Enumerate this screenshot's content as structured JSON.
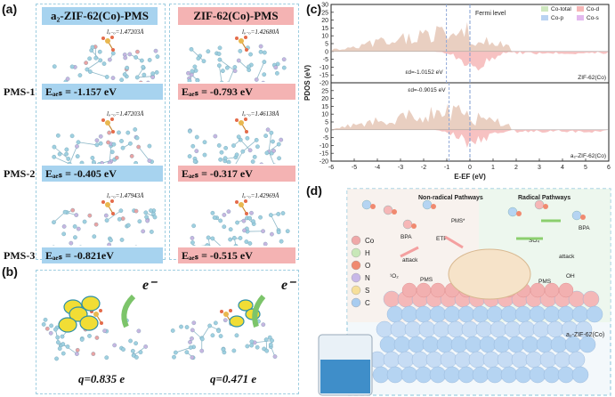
{
  "panels": {
    "a": "(a)",
    "b": "(b)",
    "c": "(c)",
    "d": "(d)"
  },
  "panel_a": {
    "left_header": "a₂-ZIF-62(Co)-PMS",
    "right_header": "ZIF-62(Co)-PMS",
    "rows": [
      {
        "label": "PMS-1",
        "left_bond": "lₒ₋ₒ=1.47203Å",
        "right_bond": "lₒ₋ₒ=1.42680Å",
        "left_E": "Eₐₑₛ = -1.157 eV",
        "right_E": "Eₐₑₛ = -0.793 eV"
      },
      {
        "label": "PMS-2",
        "left_bond": "lₒ₋ₒ=1.47203Å",
        "right_bond": "lₒ₋ₒ=1.46138Å",
        "left_E": "Eₐₑₛ = -0.405 eV",
        "right_E": "Eₐₑₛ = -0.317 eV"
      },
      {
        "label": "PMS-3",
        "left_bond": "lₒ₋ₒ=1.47943Å",
        "right_bond": "lₒ₋ₒ=1.42969Å",
        "left_E": "Eₐₑₛ = -0.821eV",
        "right_E": "Eₐₑₛ = -0.515 eV"
      }
    ]
  },
  "panel_b": {
    "electron": "e⁻",
    "left_q": "q=0.835 e",
    "right_q": "q=0.471 e"
  },
  "chart_data": {
    "type": "area",
    "xlabel": "E-EF (eV)",
    "ylabel": "PDOS (eV)",
    "xlim": [
      -6,
      6
    ],
    "xticks": [
      -6,
      -5,
      -4,
      -3,
      -2,
      -1,
      0,
      1,
      2,
      3,
      4,
      5,
      6
    ],
    "fermi_label": "Fermi level",
    "legend": [
      "Co-total",
      "Co-d",
      "Co-p",
      "Co-s"
    ],
    "legend_colors": [
      "#cfe8c0",
      "#f6b7b7",
      "#b9d3f2",
      "#e3b9ee"
    ],
    "subplots": [
      {
        "name": "ZIF-62(Co)",
        "ylim": [
          -20,
          30
        ],
        "yticks": [
          30,
          25,
          20,
          15,
          10,
          5,
          0,
          -5,
          -10,
          -15,
          -20
        ],
        "d_band_center": -1.0152,
        "d_band_label": "εd=-1.0152 eV"
      },
      {
        "name": "a₂-ZIF-62(Co)",
        "ylim": [
          -20,
          30
        ],
        "yticks": [
          30,
          25,
          20,
          15,
          10,
          5,
          0,
          -5,
          -10,
          -15,
          -20
        ],
        "d_band_center": -0.9015,
        "d_band_label": "εd=-0.9015 eV"
      }
    ]
  },
  "panel_d": {
    "nonradical": "Non-radical Pathways",
    "radical": "Radical Pathways",
    "labels": {
      "bpa1": "BPA",
      "bpa2": "BPA",
      "etp": "ETP",
      "pms_star": "PMS*",
      "attack1": "attack",
      "attack2": "attack",
      "o2": "¹O₂",
      "pms1": "PMS",
      "pms2": "PMS",
      "so4": "SO₄⁻",
      "oh": "OH",
      "catalyst": "a₂-ZIF-62(Co)"
    },
    "legend": [
      {
        "name": "Co",
        "color": "#f0a8a8"
      },
      {
        "name": "H",
        "color": "#c8e8b8"
      },
      {
        "name": "O",
        "color": "#f08a70"
      },
      {
        "name": "N",
        "color": "#c8b8e8"
      },
      {
        "name": "S",
        "color": "#f6df9a"
      },
      {
        "name": "C",
        "color": "#a8ccf0"
      }
    ]
  }
}
